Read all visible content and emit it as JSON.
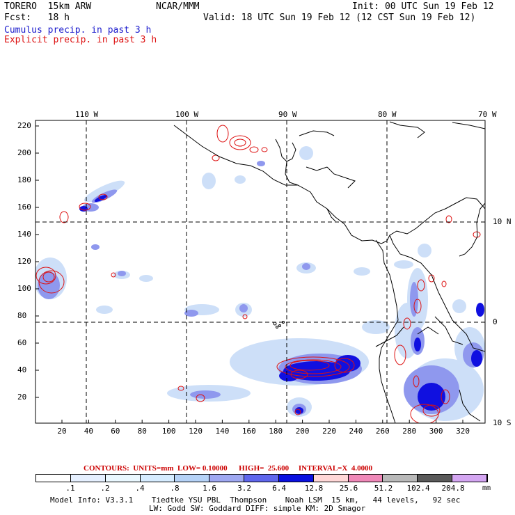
{
  "header": {
    "model": "TORERO  15km ARW",
    "org": "NCAR/MMM",
    "init": "Init: 00 UTC Sun 19 Feb 12",
    "fcst": "Fcst:   18 h",
    "valid": "Valid: 18 UTC Sun 19 Feb 12 (12 CST Sun 19 Feb 12)",
    "cumulus": "Cumulus precip. in past 3 h",
    "explicit": "Explicit precip. in past 3 h",
    "cumulus_color": "#1a1acc",
    "explicit_color": "#dd1111"
  },
  "map": {
    "lon_labels": [
      "110 W",
      "100 W",
      "90 W",
      "80 W",
      "70 W"
    ],
    "lat_labels": [
      "10 N",
      "0",
      "10 S"
    ],
    "y_ticks": [
      "220",
      "200",
      "180",
      "160",
      "140",
      "120",
      "100",
      "80",
      "60",
      "40",
      "20"
    ],
    "x_ticks": [
      "20",
      "40",
      "60",
      "80",
      "100",
      "120",
      "140",
      "160",
      "180",
      "200",
      "220",
      "240",
      "260",
      "280",
      "300",
      "320"
    ]
  },
  "contour_info": {
    "text": "CONTOURS:  UNITS=mm  LOW= 0.10000      HIGH=  25.600     INTERVAL=X  4.0000",
    "color": "#cc0000"
  },
  "colorbar": {
    "labels": [
      ".1",
      ".2",
      ".4",
      ".8",
      "1.6",
      "3.2",
      "6.4",
      "12.8",
      "25.6",
      "51.2",
      "102.4",
      "204.8"
    ],
    "units": "mm",
    "colors": [
      "#ffffff",
      "#e6f0ff",
      "#eaf8ff",
      "#d6ecff",
      "#b5d2f7",
      "#9fa8f2",
      "#5f66ec",
      "#0a10e0",
      "#ffd7d7",
      "#ef88b8",
      "#b9b9b9",
      "#5a5a5a",
      "#d4a6f2"
    ]
  },
  "footer": {
    "line1": "Model Info: V3.3.1    Tiedtke YSU PBL  Thompson    Noah LSM  15 km,   44 levels,   92 sec",
    "line2": "LW: Godd SW: Goddard DIFF: simple KM: 2D Smagor"
  }
}
